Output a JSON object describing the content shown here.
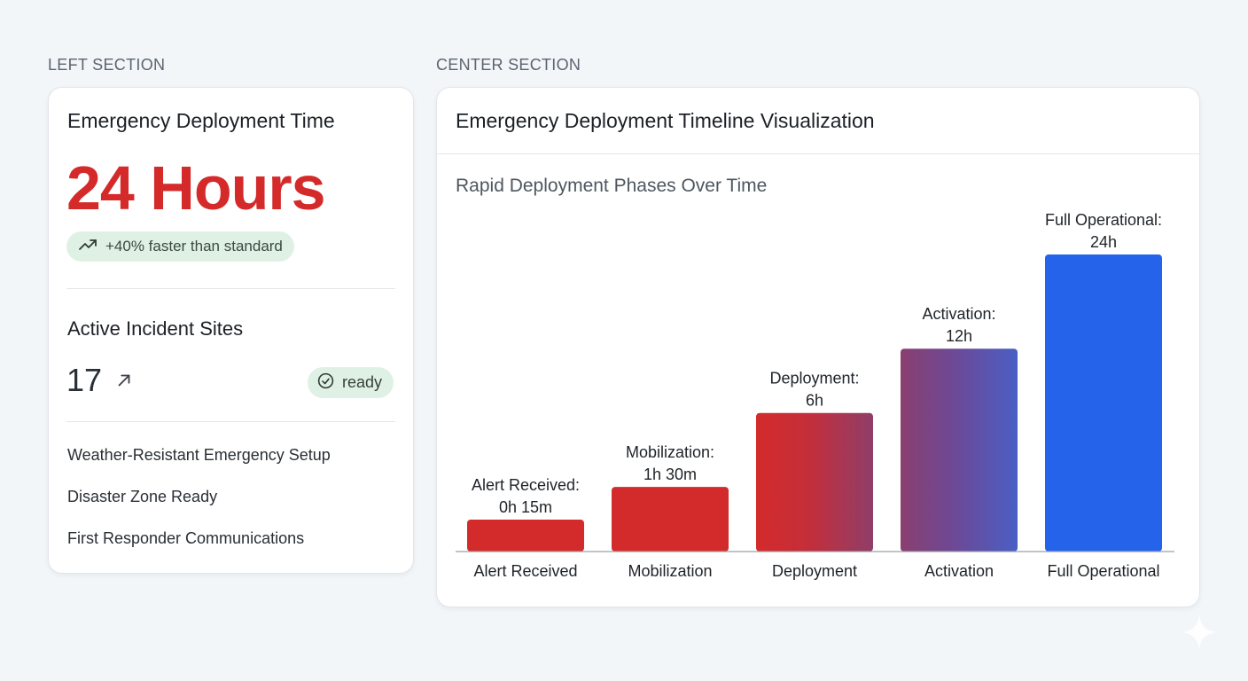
{
  "left_section": {
    "label": "LEFT SECTION",
    "card": {
      "title": "Emergency Deployment Time",
      "metric": "24 Hours",
      "trend_text": "+40% faster than standard",
      "trend_icon": "trending-up-icon",
      "incident_title": "Active Incident Sites",
      "incident_count": "17",
      "incident_icon": "arrow-up-right-icon",
      "status_badge": "ready",
      "status_icon": "check-circle-icon",
      "features": [
        "Weather-Resistant Emergency Setup",
        "Disaster Zone Ready",
        "First Responder Communications"
      ]
    }
  },
  "center_section": {
    "label": "CENTER SECTION",
    "card": {
      "title": "Emergency Deployment Timeline Visualization",
      "chart_title": "Rapid Deployment Phases Over Time"
    }
  },
  "colors": {
    "metric_red": "#d42a2a",
    "bar_red": "#d32b2b",
    "bar_blue": "#2563eb",
    "pill_green": "#dff1e5"
  },
  "chart_data": {
    "type": "bar",
    "title": "Rapid Deployment Phases Over Time",
    "categories": [
      "Alert Received",
      "Mobilization",
      "Deployment",
      "Activation",
      "Full Operational"
    ],
    "values": [
      0.25,
      1.5,
      6,
      12,
      24
    ],
    "value_unit": "hours",
    "data_labels": [
      [
        "Alert Received:",
        "0h 15m"
      ],
      [
        "Mobilization:",
        "1h 30m"
      ],
      [
        "Deployment:",
        "6h"
      ],
      [
        "Activation:",
        "12h"
      ],
      [
        "Full Operational:",
        "24h"
      ]
    ],
    "bar_fills": [
      "red",
      "red",
      "red-to-purple",
      "purple-to-blue",
      "blue"
    ],
    "xlabel": "",
    "ylabel": "",
    "grid": false
  }
}
